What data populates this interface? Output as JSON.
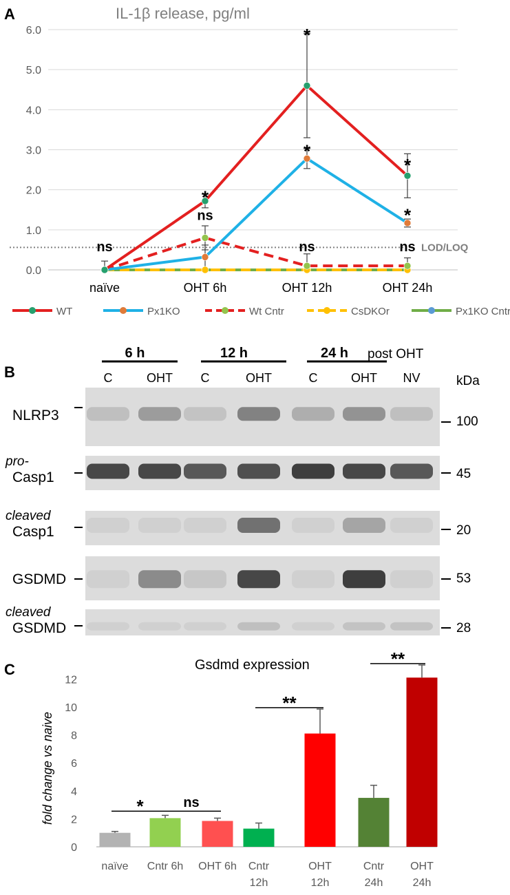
{
  "panels": {
    "a": "A",
    "b": "B",
    "c": "C"
  },
  "chart_data": [
    {
      "type": "line",
      "title": "IL-1β release, pg/ml",
      "xlabel": "",
      "ylabel": "",
      "categories": [
        "naïve",
        "OHT 6h",
        "OHT 12h",
        "OHT 24h"
      ],
      "y_ticks": [
        "0.0",
        "1.0",
        "2.0",
        "3.0",
        "4.0",
        "5.0",
        "6.0"
      ],
      "ylim": [
        0,
        6
      ],
      "grid": true,
      "legend_position": "bottom",
      "series": [
        {
          "name": "WT",
          "values": [
            0.0,
            1.72,
            4.6,
            2.35
          ],
          "errors": [
            0.0,
            0.17,
            1.3,
            0.55
          ],
          "color": "#e32020",
          "marker": "#26a06e",
          "dash": false
        },
        {
          "name": "Px1KO",
          "values": [
            0.0,
            0.32,
            2.78,
            1.17
          ],
          "errors": [
            0.0,
            0.3,
            0.25,
            0.1
          ],
          "color": "#1fb1e6",
          "marker": "#e07b39",
          "dash": false
        },
        {
          "name": "Wt Cntr",
          "values": [
            0.0,
            0.8,
            0.1,
            0.1
          ],
          "errors": [
            0.22,
            0.3,
            0.3,
            0.2
          ],
          "color": "#e32020",
          "marker": "#93c44d",
          "dash": true
        },
        {
          "name": "CsDKOr",
          "values": [
            0.0,
            0.0,
            0.0,
            0.0
          ],
          "errors": [
            0,
            0,
            0,
            0
          ],
          "color": "#ffc000",
          "marker": "#ffc000",
          "dash": true
        },
        {
          "name": "Px1KO Cntr",
          "values": [
            0.0,
            0.0,
            0.0,
            0.0
          ],
          "errors": [
            0,
            0,
            0,
            0
          ],
          "color": "#70ad47",
          "marker": "#5b9bd5",
          "dash": false
        }
      ],
      "reference_line": {
        "label": "LOD/LOQ",
        "value": 0.56
      },
      "annotations": [
        {
          "text": "ns",
          "x": "naïve",
          "y": 0.46
        },
        {
          "text": "*",
          "x": "OHT 6h",
          "y": 1.9
        },
        {
          "text": "ns",
          "x": "OHT 6h",
          "y": 1.25
        },
        {
          "text": "*",
          "x": "OHT 12h",
          "y": 5.95
        },
        {
          "text": "*",
          "x": "OHT 12h",
          "y": 3.05
        },
        {
          "text": "ns",
          "x": "OHT 12h",
          "y": 0.46
        },
        {
          "text": "*",
          "x": "OHT 24h",
          "y": 2.7
        },
        {
          "text": "*",
          "x": "OHT 24h",
          "y": 1.45
        },
        {
          "text": "ns",
          "x": "OHT 24h",
          "y": 0.46
        }
      ]
    },
    {
      "type": "bar",
      "title": "Gsdmd expression",
      "xlabel": "",
      "ylabel": "fold change vs naive",
      "categories": [
        "naïve",
        "Cntr 6h",
        "OHT 6h",
        "Cntr\n12h",
        "OHT\n12h",
        "Cntr\n24h",
        "OHT\n24h"
      ],
      "values": [
        1.0,
        2.05,
        1.85,
        1.3,
        8.1,
        3.5,
        12.1
      ],
      "errors": [
        0.1,
        0.2,
        0.2,
        0.4,
        1.75,
        0.9,
        0.9
      ],
      "colors": [
        "#b3b3b3",
        "#92d050",
        "#ff5050",
        "#00b050",
        "#ff0000",
        "#548235",
        "#c00000"
      ],
      "y_ticks": [
        "0",
        "2",
        "4",
        "6",
        "8",
        "10",
        "12"
      ],
      "ylim": [
        0,
        12.8
      ],
      "grid": false,
      "significance": [
        {
          "text": "*",
          "from": 0,
          "to": 1,
          "y": 2.55
        },
        {
          "text": "ns",
          "from": 1,
          "to": 2,
          "y": 2.55
        },
        {
          "text": "**",
          "from": 3,
          "to": 4,
          "y": 9.95
        },
        {
          "text": "**",
          "from": 5,
          "to": 6,
          "y": 13.1
        }
      ]
    }
  ],
  "blot": {
    "timepoints": [
      "6 h",
      "12 h",
      "24 h"
    ],
    "post_label": "post OHT",
    "lanes": [
      "C",
      "OHT",
      "C",
      "OHT",
      "C",
      "OHT",
      "NV"
    ],
    "kda_label": "kDa",
    "rows": [
      {
        "label_italic": "",
        "label": "NLRP3",
        "kda": "100"
      },
      {
        "label_italic": "pro-",
        "label": "Casp1",
        "kda": "45"
      },
      {
        "label_italic": "cleaved",
        "label": "Casp1",
        "kda": "20"
      },
      {
        "label_italic": "",
        "label": "GSDMD",
        "kda": "53"
      },
      {
        "label_italic": "cleaved",
        "label": "GSDMD",
        "kda": "28"
      }
    ],
    "band_intensity": [
      [
        0.15,
        0.35,
        0.12,
        0.5,
        0.25,
        0.4,
        0.15
      ],
      [
        0.85,
        0.85,
        0.75,
        0.8,
        0.9,
        0.85,
        0.75
      ],
      [
        0.05,
        0.05,
        0.05,
        0.6,
        0.05,
        0.3,
        0.05
      ],
      [
        0.05,
        0.45,
        0.1,
        0.85,
        0.05,
        0.9,
        0.05
      ],
      [
        0.05,
        0.05,
        0.05,
        0.15,
        0.05,
        0.12,
        0.12
      ]
    ]
  }
}
